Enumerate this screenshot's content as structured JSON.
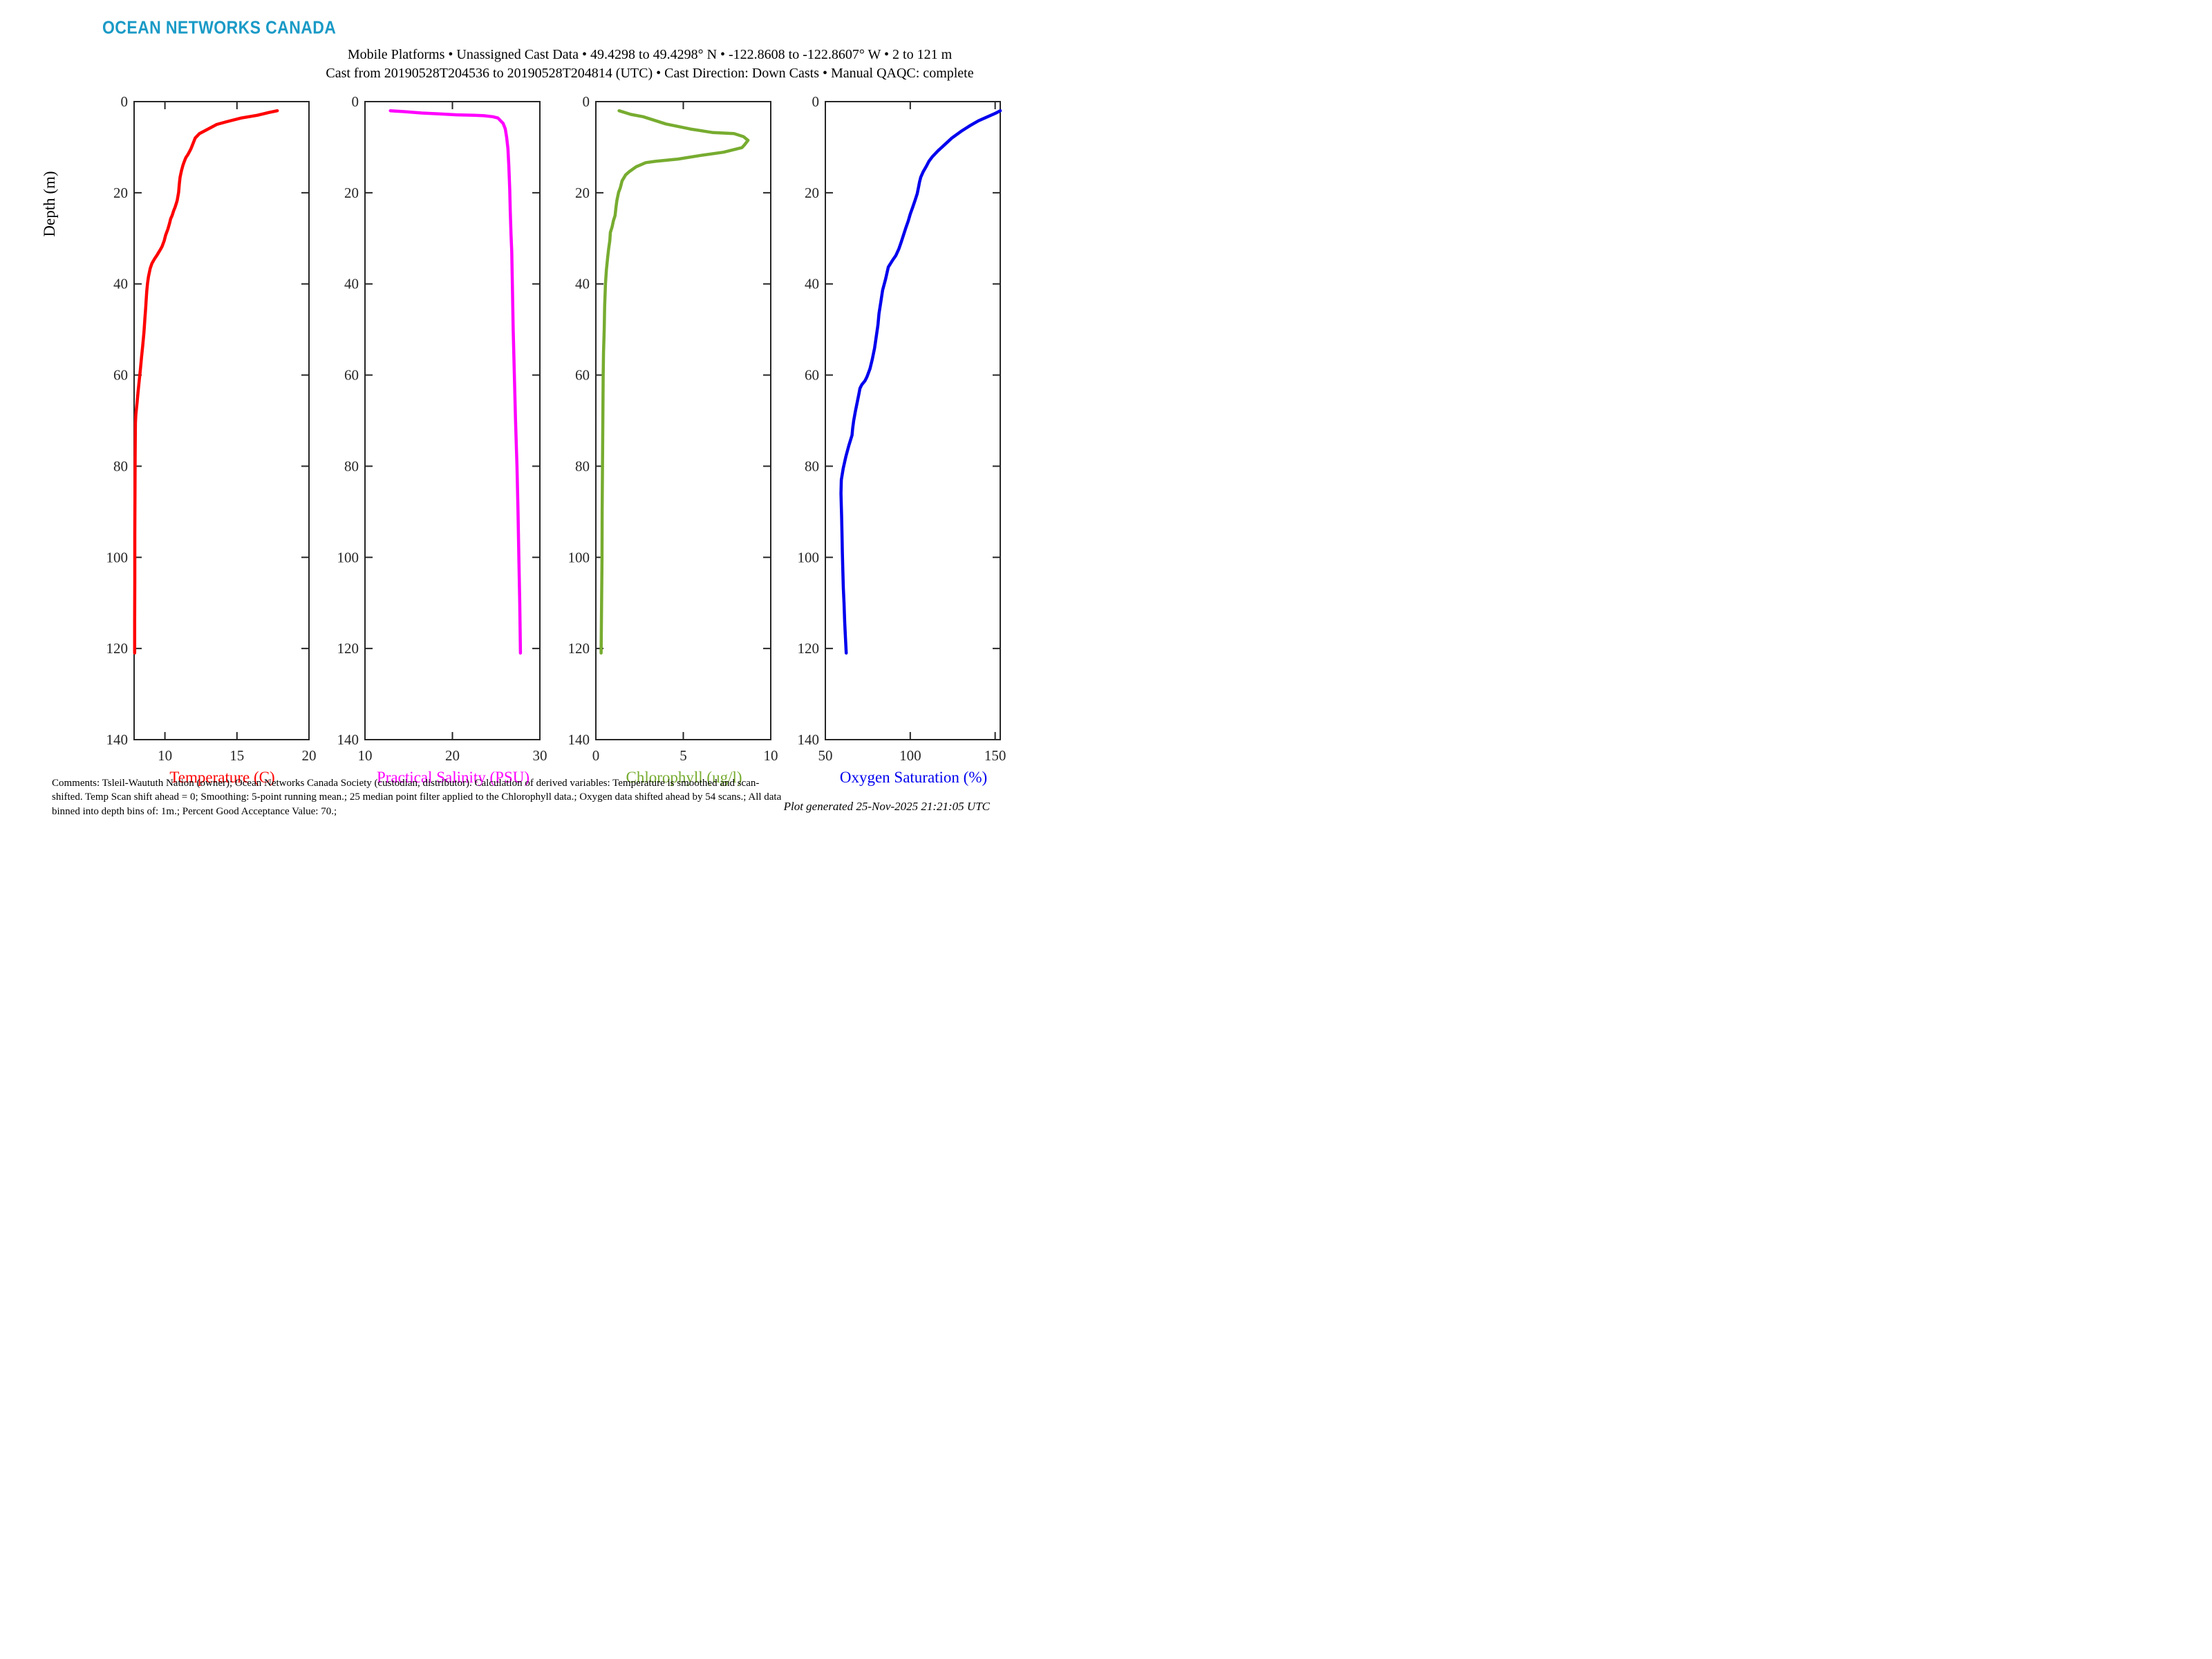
{
  "logo": {
    "text": "OCEAN NETWORKS CANADA",
    "color": "#1a9ac6"
  },
  "header": {
    "title_line1": "Mobile Platforms • Unassigned Cast Data • 49.4298 to 49.4298° N • -122.8608 to -122.8607° W • 2 to 121 m",
    "title_line2": "Cast from 20190528T204536 to 20190528T204814 (UTC) • Cast Direction: Down Casts • Manual QAQC: complete"
  },
  "axes": {
    "depth_label": "Depth (m)"
  },
  "footer": {
    "comments": "Comments: Tsleil-Waututh Nation (owner); Ocean Networks Canada Society (custodian, distributor). Calculation of derived variables: Temperature is smoothed and scan-shifted. Temp Scan shift ahead = 0; Smoothing: 5-point running mean.; 25 median point filter applied to the Chlorophyll data.; Oxygen data shifted ahead by 54 scans.; All data binned into depth bins of: 1m.; Percent Good Acceptance Value: 70.;",
    "generated": "Plot generated 25-Nov-2025 21:21:05 UTC"
  },
  "colors": {
    "temperature": "#ff0000",
    "salinity": "#ff00ff",
    "chlorophyll": "#77ac30",
    "oxygen": "#0000ee",
    "axis": "#262626",
    "logo_teal": "#1a9ac6"
  },
  "chart_data": [
    {
      "type": "line",
      "name": "temperature-profile",
      "xlabel": "Temperature (C)",
      "color": "#ff0000",
      "xlim": [
        7.86,
        20
      ],
      "xticks": [
        10,
        15,
        20
      ],
      "ylim": [
        0,
        140
      ],
      "yticks": [
        0,
        20,
        40,
        60,
        80,
        100,
        120,
        140
      ],
      "ylabel": "Depth (m)",
      "series": [
        {
          "name": "Temperature (C) vs depth (m)",
          "points": [
            [
              17.8,
              2
            ],
            [
              17.2,
              2.4
            ],
            [
              16.4,
              3
            ],
            [
              15.3,
              3.6
            ],
            [
              14.3,
              4.4
            ],
            [
              13.6,
              5
            ],
            [
              13.0,
              6
            ],
            [
              12.4,
              7
            ],
            [
              12.1,
              8
            ],
            [
              11.9,
              9.6
            ],
            [
              11.8,
              10.4
            ],
            [
              11.6,
              11.6
            ],
            [
              11.45,
              12.3
            ],
            [
              11.35,
              13.1
            ],
            [
              11.25,
              14
            ],
            [
              11.15,
              15.1
            ],
            [
              11.05,
              16.6
            ],
            [
              11.0,
              18.1
            ],
            [
              10.95,
              19.9
            ],
            [
              10.85,
              21.7
            ],
            [
              10.78,
              22.4
            ],
            [
              10.7,
              23.2
            ],
            [
              10.6,
              24
            ],
            [
              10.5,
              25
            ],
            [
              10.4,
              25.7
            ],
            [
              10.32,
              26.7
            ],
            [
              10.2,
              28
            ],
            [
              10.05,
              29.3
            ],
            [
              9.95,
              30.5
            ],
            [
              9.8,
              31.8
            ],
            [
              9.62,
              32.8
            ],
            [
              9.45,
              33.7
            ],
            [
              9.3,
              34.4
            ],
            [
              9.1,
              35.5
            ],
            [
              8.98,
              36.6
            ],
            [
              8.86,
              38.4
            ],
            [
              8.79,
              39.9
            ],
            [
              8.74,
              41.6
            ],
            [
              8.69,
              43.9
            ],
            [
              8.66,
              45.4
            ],
            [
              8.62,
              47.2
            ],
            [
              8.58,
              49
            ],
            [
              8.54,
              50.7
            ],
            [
              8.46,
              53.5
            ],
            [
              8.38,
              56
            ],
            [
              8.3,
              58.6
            ],
            [
              8.22,
              61.1
            ],
            [
              8.14,
              63.6
            ],
            [
              8.06,
              66.2
            ],
            [
              7.98,
              68.7
            ],
            [
              7.95,
              70.5
            ],
            [
              7.94,
              74
            ],
            [
              7.93,
              78
            ],
            [
              7.92,
              85
            ],
            [
              7.91,
              95
            ],
            [
              7.91,
              105
            ],
            [
              7.9,
              114
            ],
            [
              7.9,
              121
            ]
          ]
        }
      ]
    },
    {
      "type": "line",
      "name": "salinity-profile",
      "xlabel": "Practical Salinity (PSU)",
      "color": "#ff00ff",
      "xlim": [
        10,
        30
      ],
      "xticks": [
        10,
        20,
        30
      ],
      "ylim": [
        0,
        140
      ],
      "yticks": [
        0,
        20,
        40,
        60,
        80,
        100,
        120,
        140
      ],
      "ylabel": "Depth (m)",
      "series": [
        {
          "name": "Practical Salinity (PSU) vs depth (m)",
          "points": [
            [
              12.9,
              2
            ],
            [
              14.5,
              2.2
            ],
            [
              16.5,
              2.5
            ],
            [
              18.5,
              2.7
            ],
            [
              20.5,
              2.9
            ],
            [
              22.5,
              3.0
            ],
            [
              23.6,
              3.1
            ],
            [
              24.6,
              3.3
            ],
            [
              25.2,
              3.6
            ],
            [
              25.8,
              4.8
            ],
            [
              26.05,
              6
            ],
            [
              26.2,
              7.8
            ],
            [
              26.35,
              10.3
            ],
            [
              26.45,
              14.1
            ],
            [
              26.55,
              19.2
            ],
            [
              26.62,
              24.2
            ],
            [
              26.7,
              29.3
            ],
            [
              26.78,
              32.8
            ],
            [
              26.85,
              40
            ],
            [
              26.95,
              50
            ],
            [
              27.08,
              60
            ],
            [
              27.22,
              70
            ],
            [
              27.38,
              80
            ],
            [
              27.5,
              90
            ],
            [
              27.6,
              100
            ],
            [
              27.7,
              110
            ],
            [
              27.78,
              121
            ]
          ]
        }
      ]
    },
    {
      "type": "line",
      "name": "chlorophyll-profile",
      "xlabel": "Chlorophyll (ug/l)",
      "color": "#77ac30",
      "xlim": [
        0,
        10
      ],
      "xticks": [
        0,
        5,
        10
      ],
      "ylim": [
        0,
        140
      ],
      "yticks": [
        0,
        20,
        40,
        60,
        80,
        100,
        120,
        140
      ],
      "ylabel": "Depth (m)",
      "series": [
        {
          "name": "Chlorophyll (ug/l) vs depth (m)",
          "points": [
            [
              1.33,
              2
            ],
            [
              2.0,
              2.8
            ],
            [
              2.7,
              3.3
            ],
            [
              4.0,
              4.9
            ],
            [
              5.4,
              6.0
            ],
            [
              6.7,
              6.8
            ],
            [
              7.9,
              7.0
            ],
            [
              8.45,
              7.7
            ],
            [
              8.7,
              8.5
            ],
            [
              8.5,
              9.5
            ],
            [
              8.35,
              10.1
            ],
            [
              7.3,
              11.1
            ],
            [
              6.0,
              11.8
            ],
            [
              4.7,
              12.6
            ],
            [
              3.4,
              13.1
            ],
            [
              2.85,
              13.4
            ],
            [
              2.3,
              14.3
            ],
            [
              1.9,
              15.4
            ],
            [
              1.7,
              16.1
            ],
            [
              1.5,
              17.4
            ],
            [
              1.4,
              18.9
            ],
            [
              1.3,
              19.9
            ],
            [
              1.2,
              21.7
            ],
            [
              1.15,
              23.2
            ],
            [
              1.1,
              25
            ],
            [
              1.0,
              26.2
            ],
            [
              0.93,
              27.5
            ],
            [
              0.83,
              28.7
            ],
            [
              0.8,
              30.5
            ],
            [
              0.73,
              32.3
            ],
            [
              0.68,
              34
            ],
            [
              0.6,
              37
            ],
            [
              0.55,
              40
            ],
            [
              0.5,
              45
            ],
            [
              0.48,
              50
            ],
            [
              0.44,
              55
            ],
            [
              0.42,
              60
            ],
            [
              0.4,
              70
            ],
            [
              0.38,
              80
            ],
            [
              0.36,
              90
            ],
            [
              0.35,
              100
            ],
            [
              0.33,
              110
            ],
            [
              0.3,
              121
            ]
          ]
        }
      ]
    },
    {
      "type": "line",
      "name": "oxygen-saturation-profile",
      "xlabel": "Oxygen Saturation (%)",
      "color": "#0000ee",
      "xlim": [
        50,
        153
      ],
      "xticks": [
        50,
        100,
        150
      ],
      "ylim": [
        0,
        140
      ],
      "yticks": [
        0,
        20,
        40,
        60,
        80,
        100,
        120,
        140
      ],
      "ylabel": "Depth (m)",
      "series": [
        {
          "name": "Oxygen Saturation (%) vs depth (m)",
          "points": [
            [
              153,
              2
            ],
            [
              150,
              2.6
            ],
            [
              146.9,
              3.1
            ],
            [
              140.2,
              4.2
            ],
            [
              135.5,
              5.2
            ],
            [
              130,
              6.5
            ],
            [
              124.5,
              8
            ],
            [
              119.8,
              9.6
            ],
            [
              116.3,
              10.8
            ],
            [
              113,
              12.1
            ],
            [
              111,
              13.1
            ],
            [
              109.6,
              14.1
            ],
            [
              107.6,
              15.4
            ],
            [
              106.2,
              16.6
            ],
            [
              105.5,
              17.6
            ],
            [
              104.9,
              18.7
            ],
            [
              104.1,
              20.2
            ],
            [
              102.8,
              21.7
            ],
            [
              101.4,
              23.2
            ],
            [
              100,
              24.7
            ],
            [
              98.8,
              26.2
            ],
            [
              97.3,
              27.8
            ],
            [
              96,
              29.3
            ],
            [
              94.7,
              30.8
            ],
            [
              93.3,
              32.3
            ],
            [
              91.5,
              33.8
            ],
            [
              89.6,
              34.8
            ],
            [
              87.1,
              36.3
            ],
            [
              85.5,
              38.9
            ],
            [
              83.7,
              41.4
            ],
            [
              82.7,
              43.9
            ],
            [
              81.6,
              46.5
            ],
            [
              81,
              49
            ],
            [
              80,
              51.5
            ],
            [
              79,
              54.1
            ],
            [
              77.6,
              56.6
            ],
            [
              76.3,
              58.6
            ],
            [
              74.5,
              60.4
            ],
            [
              73.3,
              61.3
            ],
            [
              71.5,
              62.1
            ],
            [
              70.4,
              62.9
            ],
            [
              69.8,
              64.1
            ],
            [
              68.8,
              65.9
            ],
            [
              67.7,
              67.9
            ],
            [
              66.7,
              70
            ],
            [
              66.1,
              71.7
            ],
            [
              65.7,
              73.2
            ],
            [
              63.8,
              75.5
            ],
            [
              62,
              78
            ],
            [
              60.5,
              80.5
            ],
            [
              59.4,
              83
            ],
            [
              59.2,
              86
            ],
            [
              59.6,
              91.5
            ],
            [
              59.8,
              95
            ],
            [
              60.0,
              99
            ],
            [
              60.3,
              103
            ],
            [
              60.6,
              106.7
            ],
            [
              61.0,
              110
            ],
            [
              61.4,
              114.3
            ],
            [
              61.9,
              118
            ],
            [
              62.3,
              121
            ]
          ]
        }
      ]
    }
  ]
}
